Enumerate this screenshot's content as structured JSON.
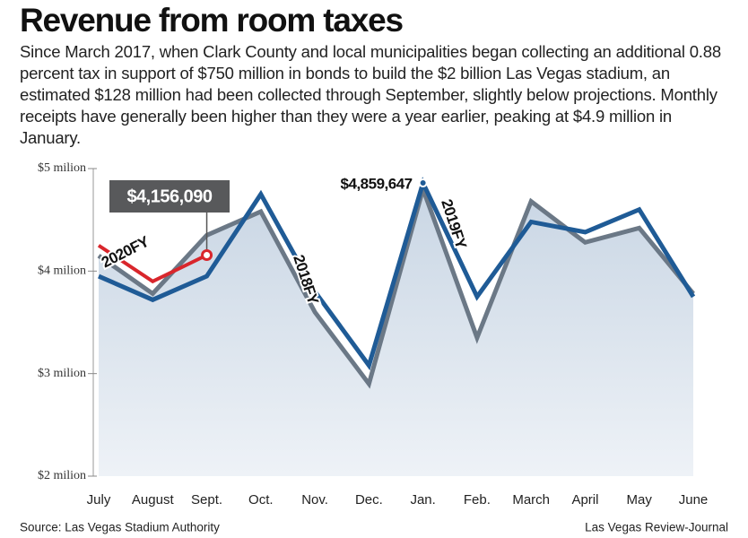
{
  "chart_data": {
    "type": "line",
    "title": "Revenue from room taxes",
    "subtitle": "Since March 2017, when Clark County and local municipalities began collecting an additional 0.88 percent tax in support of $750 million in bonds to build the $2 billion Las Vegas stadium, an estimated $128 million had been collected through September, slightly below projections. Monthly receipts have generally been higher than they were a year earlier, peaking at $4.9 million in January.",
    "categories": [
      "July",
      "August",
      "Sept.",
      "Oct.",
      "Nov.",
      "Dec.",
      "Jan.",
      "Feb.",
      "March",
      "April",
      "May",
      "June"
    ],
    "series": [
      {
        "name": "2018FY",
        "color": "#6b7886",
        "values": [
          4.15,
          3.78,
          4.35,
          4.58,
          3.6,
          2.9,
          4.8,
          3.35,
          4.68,
          4.28,
          4.42,
          3.78
        ]
      },
      {
        "name": "2019FY",
        "color": "#1f5b96",
        "values": [
          3.95,
          3.72,
          3.95,
          4.75,
          3.8,
          3.08,
          4.859647,
          3.75,
          4.48,
          4.38,
          4.6,
          3.75
        ],
        "value_labels": [
          null,
          null,
          null,
          null,
          null,
          null,
          "$4,859,647",
          null,
          null,
          null,
          null,
          null
        ]
      },
      {
        "name": "2020FY",
        "color": "#d9262c",
        "values": [
          4.25,
          3.9,
          4.15609,
          null,
          null,
          null,
          null,
          null,
          null,
          null,
          null,
          null
        ],
        "value_labels": [
          null,
          null,
          "$4,156,090",
          null,
          null,
          null,
          null,
          null,
          null,
          null,
          null,
          null
        ]
      }
    ],
    "ylim": [
      2,
      5
    ],
    "yticks": [
      {
        "value": 2,
        "label": "$2 milion"
      },
      {
        "value": 3,
        "label": "$3 milion"
      },
      {
        "value": 4,
        "label": "$4 milion"
      },
      {
        "value": 5,
        "label": "$5 milion"
      }
    ],
    "source": "Source: Las Vegas Stadium Authority",
    "credit": "Las Vegas Review-Journal"
  }
}
